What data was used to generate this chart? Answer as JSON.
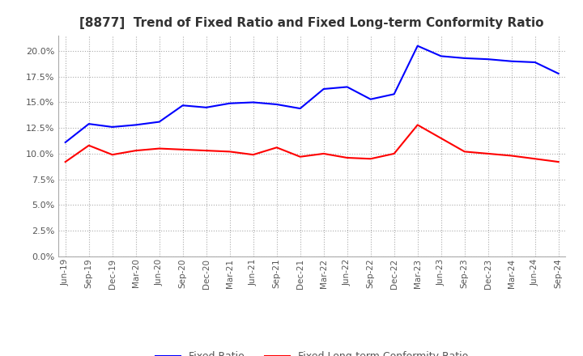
{
  "title": "[8877]  Trend of Fixed Ratio and Fixed Long-term Conformity Ratio",
  "x_labels": [
    "Jun-19",
    "Sep-19",
    "Dec-19",
    "Mar-20",
    "Jun-20",
    "Sep-20",
    "Dec-20",
    "Mar-21",
    "Jun-21",
    "Sep-21",
    "Dec-21",
    "Mar-22",
    "Jun-22",
    "Sep-22",
    "Dec-22",
    "Mar-23",
    "Jun-23",
    "Sep-23",
    "Dec-23",
    "Mar-24",
    "Jun-24",
    "Sep-24"
  ],
  "fixed_ratio": [
    11.1,
    12.9,
    12.6,
    12.8,
    13.1,
    14.7,
    14.5,
    14.9,
    15.0,
    14.8,
    14.4,
    16.3,
    16.5,
    15.3,
    15.8,
    20.5,
    19.5,
    19.3,
    19.2,
    19.0,
    18.9,
    17.8
  ],
  "fixed_lt_ratio": [
    9.2,
    10.8,
    9.9,
    10.3,
    10.5,
    10.4,
    10.3,
    10.2,
    9.9,
    10.6,
    9.7,
    10.0,
    9.6,
    9.5,
    10.0,
    12.8,
    11.5,
    10.2,
    10.0,
    9.8,
    9.5,
    9.2
  ],
  "fixed_ratio_color": "#0000FF",
  "fixed_lt_ratio_color": "#FF0000",
  "background_color": "#FFFFFF",
  "grid_color": "#AAAAAA",
  "ylim": [
    0.0,
    21.5
  ],
  "yticks": [
    0.0,
    2.5,
    5.0,
    7.5,
    10.0,
    12.5,
    15.0,
    17.5,
    20.0
  ],
  "legend_fixed_ratio": "Fixed Ratio",
  "legend_fixed_lt_ratio": "Fixed Long-term Conformity Ratio"
}
